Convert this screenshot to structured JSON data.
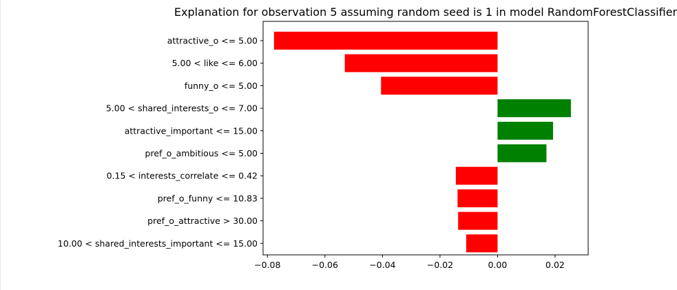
{
  "chart_data": {
    "type": "bar",
    "orientation": "horizontal",
    "title": "Explanation for observation 5 assuming random seed is 1 in model RandomForestClassifier",
    "xlabel": "",
    "ylabel": "",
    "xlim": [
      -0.0815,
      0.0315
    ],
    "x_ticks": [
      -0.08,
      -0.06,
      -0.04,
      -0.02,
      0.0,
      0.02
    ],
    "x_tick_labels": [
      "−0.08",
      "−0.06",
      "−0.04",
      "−0.02",
      "0.00",
      "0.02"
    ],
    "grid": false,
    "legend": false,
    "positive_color": "#008000",
    "negative_color": "#ff0000",
    "categories": [
      "attractive_o <= 5.00",
      "5.00 < like <= 6.00",
      "funny_o <= 5.00",
      "5.00 < shared_interests_o <= 7.00",
      "attractive_important <= 15.00",
      "pref_o_ambitious <= 5.00",
      "0.15 < interests_correlate <= 0.42",
      "pref_o_funny <= 10.83",
      "pref_o_attractive > 30.00",
      "10.00 < shared_interests_important <= 15.00"
    ],
    "values": [
      -0.0777,
      -0.0531,
      -0.0405,
      0.0255,
      0.0193,
      0.017,
      -0.0145,
      -0.0139,
      -0.0137,
      -0.0109
    ]
  }
}
